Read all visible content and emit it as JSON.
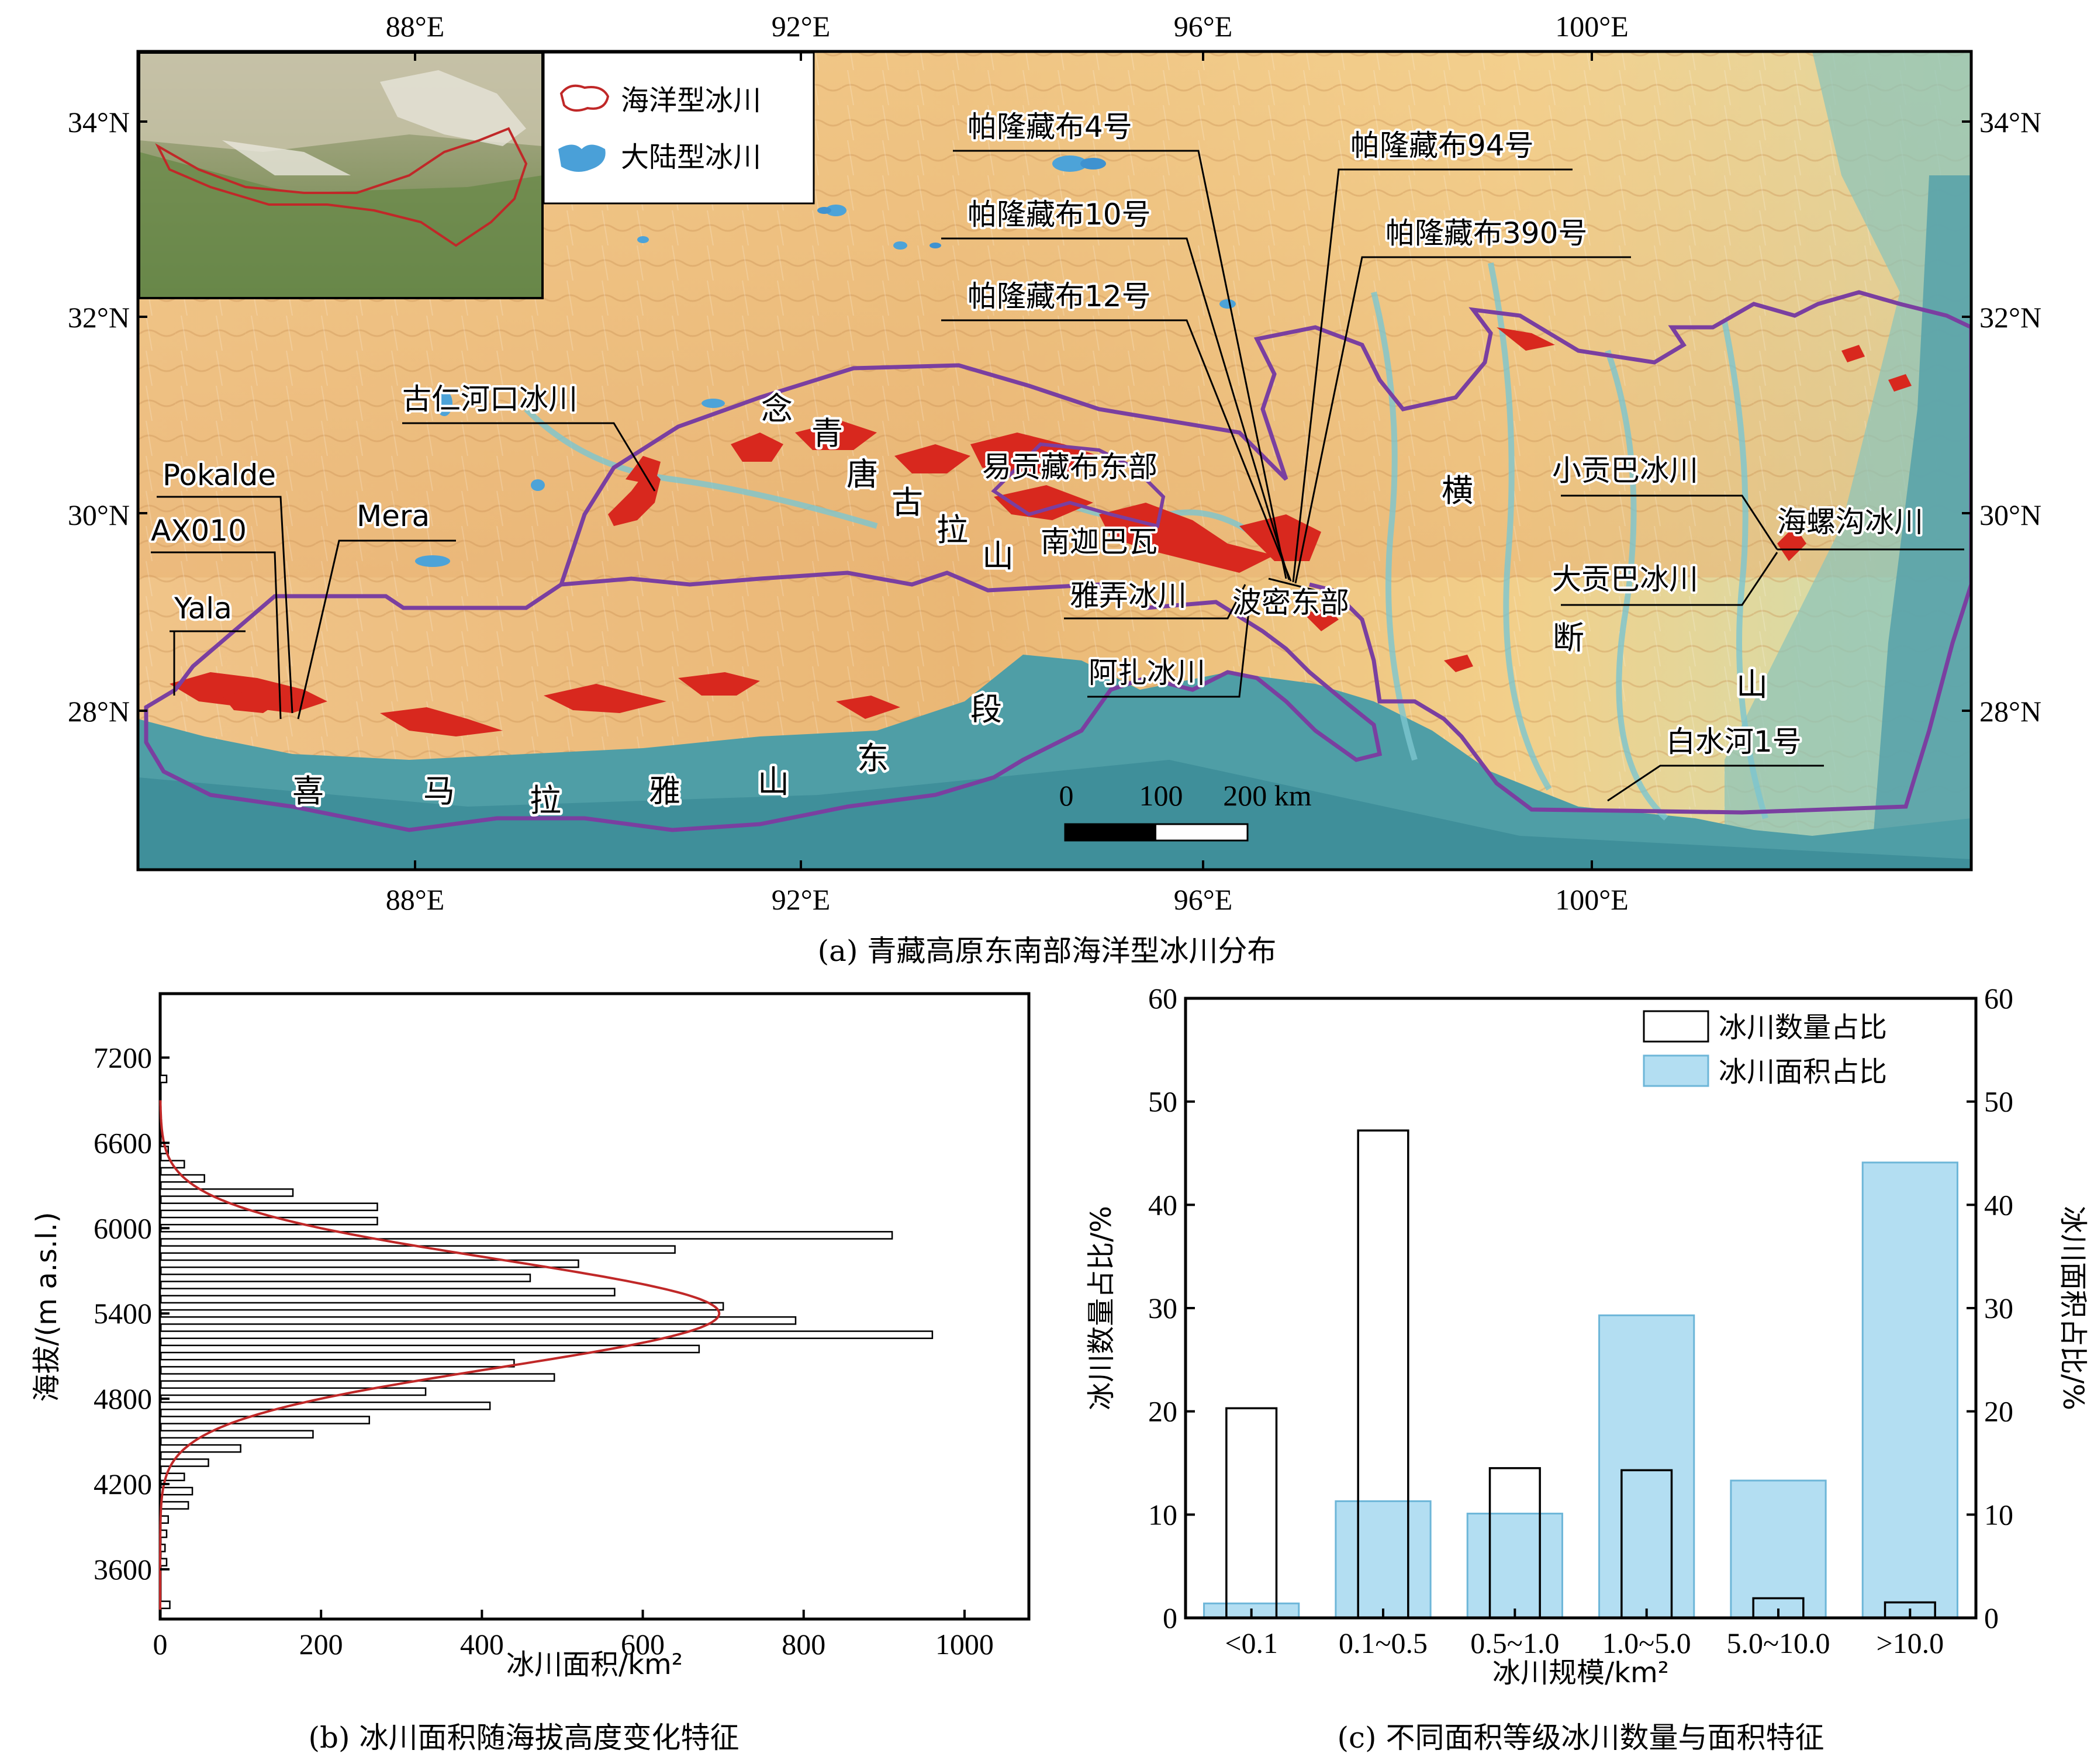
{
  "panel_a": {
    "caption": "(a) 青藏高原东南部海洋型冰川分布",
    "lon_ticks": [
      "88°E",
      "92°E",
      "96°E",
      "100°E"
    ],
    "lat_ticks": [
      "34°N",
      "32°N",
      "30°N",
      "28°N"
    ],
    "legend": {
      "maritime": "海洋型冰川",
      "continental": "大陆型冰川"
    },
    "scalebar": {
      "t0": "0",
      "t1": "100",
      "t2": "200 km"
    },
    "glaciers": {
      "p4": "帕隆藏布4号",
      "p10": "帕隆藏布10号",
      "p12": "帕隆藏布12号",
      "p94": "帕隆藏布94号",
      "p390": "帕隆藏布390号",
      "gurenhekou": "古仁河口冰川",
      "pokalde": "Pokalde",
      "mera": "Mera",
      "ax010": "AX010",
      "yala": "Yala",
      "yigong": "易贡藏布东部",
      "namcha": "南迦巴瓦",
      "yanong": "雅弄冰川",
      "bomi": "波密东部",
      "azha": "阿扎冰川",
      "xiaogongba": "小贡巴冰川",
      "hailuogou": "海螺沟冰川",
      "dagongba": "大贡巴冰川",
      "baishuihe": "白水河1号"
    },
    "range_chars": {
      "nqtgl": [
        "念",
        "青",
        "唐",
        "古",
        "拉",
        "山"
      ],
      "himalaya": [
        "喜",
        "马",
        "拉",
        "雅",
        "山",
        "东",
        "段"
      ],
      "hengduan": [
        "横",
        "断",
        "山"
      ]
    },
    "colors": {
      "boundary": "#7a3fa0",
      "glacier": "#d8281e",
      "valley": "#3fa0b0",
      "lowland": "#4e9aa6",
      "plateau": "#e8b070",
      "lake": "#4da3d8"
    }
  },
  "panel_b": {
    "caption": "(b) 冰川面积随海拔高度变化特征",
    "chart_data": {
      "type": "bar",
      "orientation": "horizontal",
      "xlabel": "冰川面积/km²",
      "ylabel": "海拔/(m a.s.l.)",
      "xlim": [
        0,
        1080
      ],
      "ylim": [
        3250,
        7650
      ],
      "xticks": [
        0,
        200,
        400,
        600,
        800,
        1000
      ],
      "yticks": [
        3600,
        4200,
        4800,
        5400,
        6000,
        6600,
        7200
      ],
      "bin_width": 50,
      "elevations": [
        3350,
        3650,
        3750,
        3850,
        3950,
        4050,
        4150,
        4250,
        4350,
        4450,
        4550,
        4650,
        4750,
        4850,
        4950,
        5050,
        5150,
        5250,
        5350,
        5450,
        5550,
        5650,
        5750,
        5850,
        5950,
        6050,
        6150,
        6250,
        6350,
        6450,
        6550,
        7050
      ],
      "areas": [
        12,
        8,
        6,
        8,
        10,
        35,
        40,
        30,
        60,
        100,
        190,
        260,
        410,
        330,
        490,
        440,
        670,
        960,
        790,
        700,
        565,
        460,
        520,
        640,
        910,
        270,
        270,
        165,
        55,
        30,
        10,
        8
      ],
      "fit_curve": {
        "type": "gaussian",
        "mu": 5400,
        "sigma": 380,
        "peak": 695
      }
    }
  },
  "panel_c": {
    "caption": "(c) 不同面积等级冰川数量与面积特征",
    "chart_data": {
      "type": "bar",
      "categories": [
        "<0.1",
        "0.1~0.5",
        "0.5~1.0",
        "1.0~5.0",
        "5.0~10.0",
        ">10.0"
      ],
      "series": [
        {
          "name": "冰川数量占比",
          "values": [
            20.3,
            47.2,
            14.5,
            14.3,
            1.9,
            1.5
          ]
        },
        {
          "name": "冰川面积占比",
          "values": [
            1.4,
            11.3,
            10.1,
            29.3,
            13.3,
            44.1
          ]
        }
      ],
      "xlabel": "冰川规模/km²",
      "ylabel": "冰川数量占比/%",
      "ylabel_right": "冰川面积占比/%",
      "ylim": [
        0,
        60
      ],
      "yticks": [
        0,
        10,
        20,
        30,
        40,
        50,
        60
      ],
      "legend": "top-right",
      "colors": {
        "count": "#ffffff",
        "area": "#b3def2"
      }
    }
  }
}
